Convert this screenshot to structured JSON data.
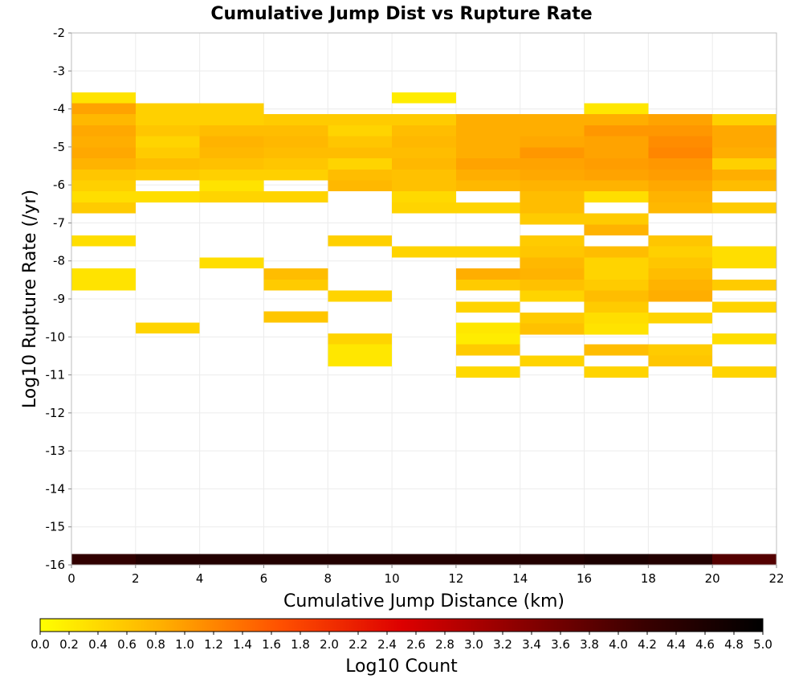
{
  "chart_data": {
    "type": "heatmap",
    "title": "Cumulative Jump Dist vs Rupture Rate",
    "xlabel": "Cumulative Jump Distance (km)",
    "ylabel": "Log10 Rupture Rate (/yr)",
    "xlim": [
      0,
      22
    ],
    "ylim": [
      -16,
      -2
    ],
    "x_ticks": [
      "0",
      "2",
      "4",
      "6",
      "8",
      "10",
      "12",
      "14",
      "16",
      "18",
      "20",
      "22"
    ],
    "y_ticks": [
      "-2",
      "-3",
      "-4",
      "-5",
      "-6",
      "-7",
      "-8",
      "-9",
      "-10",
      "-11",
      "-12",
      "-13",
      "-14",
      "-15",
      "-16"
    ],
    "grid": true,
    "x_bin_width": 2,
    "y_bin_height": 0.29,
    "colorbar": {
      "label": "Log10 Count",
      "range": [
        0,
        5
      ],
      "ticks": [
        "0.0",
        "0.2",
        "0.4",
        "0.6",
        "0.8",
        "1.0",
        "1.2",
        "1.4",
        "1.6",
        "1.8",
        "2.0",
        "2.2",
        "2.4",
        "2.6",
        "2.8",
        "3.0",
        "3.2",
        "3.4",
        "3.6",
        "3.8",
        "4.0",
        "4.2",
        "4.4",
        "4.6",
        "4.8",
        "5.0"
      ],
      "colors": [
        "#ffff00",
        "#ffb000",
        "#ff5000",
        "#dd0000",
        "#8a0000",
        "#3a0000",
        "#000000"
      ]
    },
    "cells_note": "each cell: [x_start_km, log10_rate_bin_start, log10_count]",
    "cells": [
      [
        0,
        -3.85,
        0.3
      ],
      [
        0,
        -4.14,
        0.95
      ],
      [
        0,
        -4.43,
        0.75
      ],
      [
        0,
        -4.72,
        0.9
      ],
      [
        0,
        -5.01,
        0.85
      ],
      [
        0,
        -5.3,
        0.9
      ],
      [
        0,
        -5.59,
        0.8
      ],
      [
        0,
        -5.88,
        0.6
      ],
      [
        0,
        -6.17,
        0.5
      ],
      [
        0,
        -6.46,
        0.35
      ],
      [
        0,
        -6.75,
        0.55
      ],
      [
        0,
        -7.62,
        0.35
      ],
      [
        0,
        -8.49,
        0.3
      ],
      [
        0,
        -8.78,
        0.3
      ],
      [
        2,
        -4.14,
        0.5
      ],
      [
        2,
        -4.43,
        0.5
      ],
      [
        2,
        -4.72,
        0.6
      ],
      [
        2,
        -5.01,
        0.45
      ],
      [
        2,
        -5.3,
        0.55
      ],
      [
        2,
        -5.59,
        0.7
      ],
      [
        2,
        -5.88,
        0.55
      ],
      [
        2,
        -6.46,
        0.35
      ],
      [
        2,
        -9.91,
        0.45
      ],
      [
        4,
        -4.14,
        0.5
      ],
      [
        4,
        -4.43,
        0.5
      ],
      [
        4,
        -4.72,
        0.7
      ],
      [
        4,
        -5.01,
        0.8
      ],
      [
        4,
        -5.3,
        0.75
      ],
      [
        4,
        -5.59,
        0.65
      ],
      [
        4,
        -5.88,
        0.5
      ],
      [
        4,
        -6.17,
        0.3
      ],
      [
        4,
        -6.46,
        0.45
      ],
      [
        4,
        -8.2,
        0.35
      ],
      [
        6,
        -4.43,
        0.55
      ],
      [
        6,
        -4.72,
        0.7
      ],
      [
        6,
        -5.01,
        0.75
      ],
      [
        6,
        -5.3,
        0.7
      ],
      [
        6,
        -5.59,
        0.6
      ],
      [
        6,
        -5.88,
        0.5
      ],
      [
        6,
        -6.46,
        0.45
      ],
      [
        6,
        -8.49,
        0.7
      ],
      [
        6,
        -8.78,
        0.55
      ],
      [
        6,
        -9.62,
        0.6
      ],
      [
        8,
        -4.43,
        0.55
      ],
      [
        8,
        -4.72,
        0.45
      ],
      [
        8,
        -5.01,
        0.6
      ],
      [
        8,
        -5.3,
        0.7
      ],
      [
        8,
        -5.59,
        0.45
      ],
      [
        8,
        -5.88,
        0.7
      ],
      [
        8,
        -6.17,
        0.75
      ],
      [
        8,
        -7.62,
        0.5
      ],
      [
        8,
        -9.07,
        0.45
      ],
      [
        8,
        -10.2,
        0.45
      ],
      [
        8,
        -10.49,
        0.25
      ],
      [
        8,
        -10.78,
        0.25
      ],
      [
        10,
        -3.85,
        0.2
      ],
      [
        10,
        -4.43,
        0.55
      ],
      [
        10,
        -4.72,
        0.7
      ],
      [
        10,
        -5.01,
        0.75
      ],
      [
        10,
        -5.3,
        0.7
      ],
      [
        10,
        -5.59,
        0.75
      ],
      [
        10,
        -5.88,
        0.65
      ],
      [
        10,
        -6.17,
        0.65
      ],
      [
        10,
        -6.46,
        0.4
      ],
      [
        10,
        -6.75,
        0.45
      ],
      [
        10,
        -7.91,
        0.45
      ],
      [
        12,
        -4.43,
        0.85
      ],
      [
        12,
        -4.72,
        0.85
      ],
      [
        12,
        -5.01,
        0.85
      ],
      [
        12,
        -5.3,
        0.85
      ],
      [
        12,
        -5.59,
        0.95
      ],
      [
        12,
        -5.88,
        0.85
      ],
      [
        12,
        -6.17,
        0.75
      ],
      [
        12,
        -6.75,
        0.45
      ],
      [
        12,
        -7.91,
        0.45
      ],
      [
        12,
        -8.49,
        0.85
      ],
      [
        12,
        -8.78,
        0.55
      ],
      [
        12,
        -9.36,
        0.45
      ],
      [
        12,
        -9.91,
        0.25
      ],
      [
        12,
        -10.2,
        0.2
      ],
      [
        12,
        -10.49,
        0.55
      ],
      [
        12,
        -11.07,
        0.4
      ],
      [
        14,
        -4.43,
        0.85
      ],
      [
        14,
        -4.72,
        0.85
      ],
      [
        14,
        -5.01,
        0.9
      ],
      [
        14,
        -5.3,
        1.05
      ],
      [
        14,
        -5.59,
        0.95
      ],
      [
        14,
        -5.88,
        0.9
      ],
      [
        14,
        -6.17,
        0.8
      ],
      [
        14,
        -6.46,
        0.7
      ],
      [
        14,
        -6.75,
        0.7
      ],
      [
        14,
        -7.04,
        0.55
      ],
      [
        14,
        -7.62,
        0.55
      ],
      [
        14,
        -7.91,
        0.6
      ],
      [
        14,
        -8.2,
        0.75
      ],
      [
        14,
        -8.49,
        0.8
      ],
      [
        14,
        -8.78,
        0.65
      ],
      [
        14,
        -9.07,
        0.45
      ],
      [
        14,
        -9.65,
        0.55
      ],
      [
        14,
        -9.94,
        0.65
      ],
      [
        14,
        -10.78,
        0.45
      ],
      [
        16,
        -4.14,
        0.25
      ],
      [
        16,
        -4.43,
        0.85
      ],
      [
        16,
        -4.72,
        1.05
      ],
      [
        16,
        -5.01,
        0.95
      ],
      [
        16,
        -5.3,
        0.95
      ],
      [
        16,
        -5.59,
        1.0
      ],
      [
        16,
        -5.88,
        0.95
      ],
      [
        16,
        -6.17,
        0.8
      ],
      [
        16,
        -6.46,
        0.35
      ],
      [
        16,
        -7.04,
        0.55
      ],
      [
        16,
        -7.33,
        0.8
      ],
      [
        16,
        -7.91,
        0.7
      ],
      [
        16,
        -8.2,
        0.45
      ],
      [
        16,
        -8.49,
        0.45
      ],
      [
        16,
        -8.78,
        0.55
      ],
      [
        16,
        -9.07,
        0.7
      ],
      [
        16,
        -9.36,
        0.55
      ],
      [
        16,
        -9.65,
        0.35
      ],
      [
        16,
        -9.94,
        0.3
      ],
      [
        16,
        -10.49,
        0.7
      ],
      [
        16,
        -11.07,
        0.45
      ],
      [
        18,
        -4.43,
        0.95
      ],
      [
        18,
        -4.72,
        1.05
      ],
      [
        18,
        -5.01,
        1.15
      ],
      [
        18,
        -5.3,
        1.2
      ],
      [
        18,
        -5.59,
        1.05
      ],
      [
        18,
        -5.88,
        1.0
      ],
      [
        18,
        -6.17,
        0.9
      ],
      [
        18,
        -6.46,
        0.8
      ],
      [
        18,
        -6.75,
        0.75
      ],
      [
        18,
        -7.62,
        0.6
      ],
      [
        18,
        -7.91,
        0.5
      ],
      [
        18,
        -8.2,
        0.6
      ],
      [
        18,
        -8.49,
        0.7
      ],
      [
        18,
        -8.78,
        0.8
      ],
      [
        18,
        -9.07,
        0.85
      ],
      [
        18,
        -9.65,
        0.45
      ],
      [
        18,
        -10.49,
        0.55
      ],
      [
        18,
        -10.78,
        0.6
      ],
      [
        20,
        -4.43,
        0.5
      ],
      [
        20,
        -4.72,
        0.9
      ],
      [
        20,
        -5.01,
        0.9
      ],
      [
        20,
        -5.3,
        0.85
      ],
      [
        20,
        -5.59,
        0.5
      ],
      [
        20,
        -5.88,
        0.85
      ],
      [
        20,
        -6.17,
        0.7
      ],
      [
        20,
        -6.75,
        0.55
      ],
      [
        20,
        -7.91,
        0.35
      ],
      [
        20,
        -8.2,
        0.35
      ],
      [
        20,
        -8.78,
        0.55
      ],
      [
        20,
        -9.36,
        0.45
      ],
      [
        20,
        -10.2,
        0.35
      ],
      [
        20,
        -11.07,
        0.45
      ],
      [
        0,
        -16.0,
        4.3
      ],
      [
        2,
        -16.0,
        4.5
      ],
      [
        4,
        -16.0,
        4.5
      ],
      [
        6,
        -16.0,
        4.5
      ],
      [
        8,
        -16.0,
        4.5
      ],
      [
        10,
        -16.0,
        4.5
      ],
      [
        12,
        -16.0,
        4.5
      ],
      [
        14,
        -16.0,
        4.5
      ],
      [
        16,
        -16.0,
        4.6
      ],
      [
        18,
        -16.0,
        4.5
      ],
      [
        20,
        -16.0,
        3.9
      ]
    ]
  }
}
